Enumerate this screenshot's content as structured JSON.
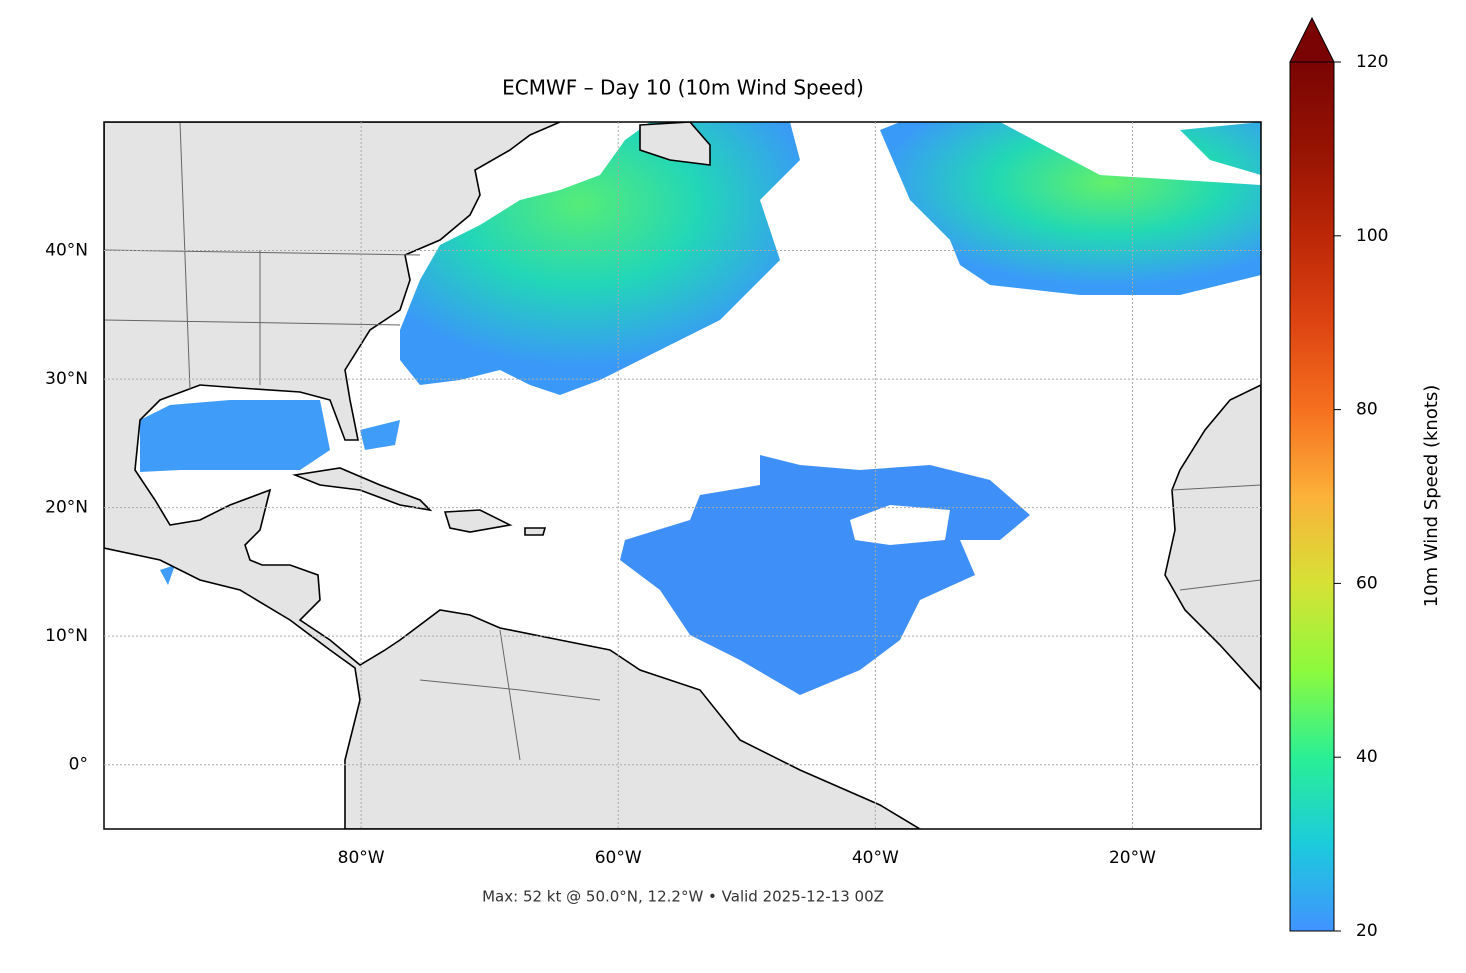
{
  "chart_data": {
    "type": "map",
    "title": "ECMWF – Day 10 (10m Wind Speed)",
    "footnote": "Max: 52 kt @ 50.0°N, 12.2°W • Valid 2025-12-13 00Z",
    "xlim": [
      -100,
      -10
    ],
    "ylim": [
      -5,
      50
    ],
    "xticks": [
      {
        "value": -80,
        "label": "80°W"
      },
      {
        "value": -60,
        "label": "60°W"
      },
      {
        "value": -40,
        "label": "40°W"
      },
      {
        "value": -20,
        "label": "20°W"
      }
    ],
    "yticks": [
      {
        "value": 0,
        "label": "0°"
      },
      {
        "value": 10,
        "label": "10°N"
      },
      {
        "value": 20,
        "label": "20°N"
      },
      {
        "value": 30,
        "label": "30°N"
      },
      {
        "value": 40,
        "label": "40°N"
      }
    ],
    "grid": true,
    "colorbar": {
      "label": "10m Wind Speed (knots)",
      "lim": [
        20,
        120
      ],
      "ticks": [
        20,
        40,
        60,
        80,
        100,
        120
      ],
      "extend": "max"
    }
  }
}
